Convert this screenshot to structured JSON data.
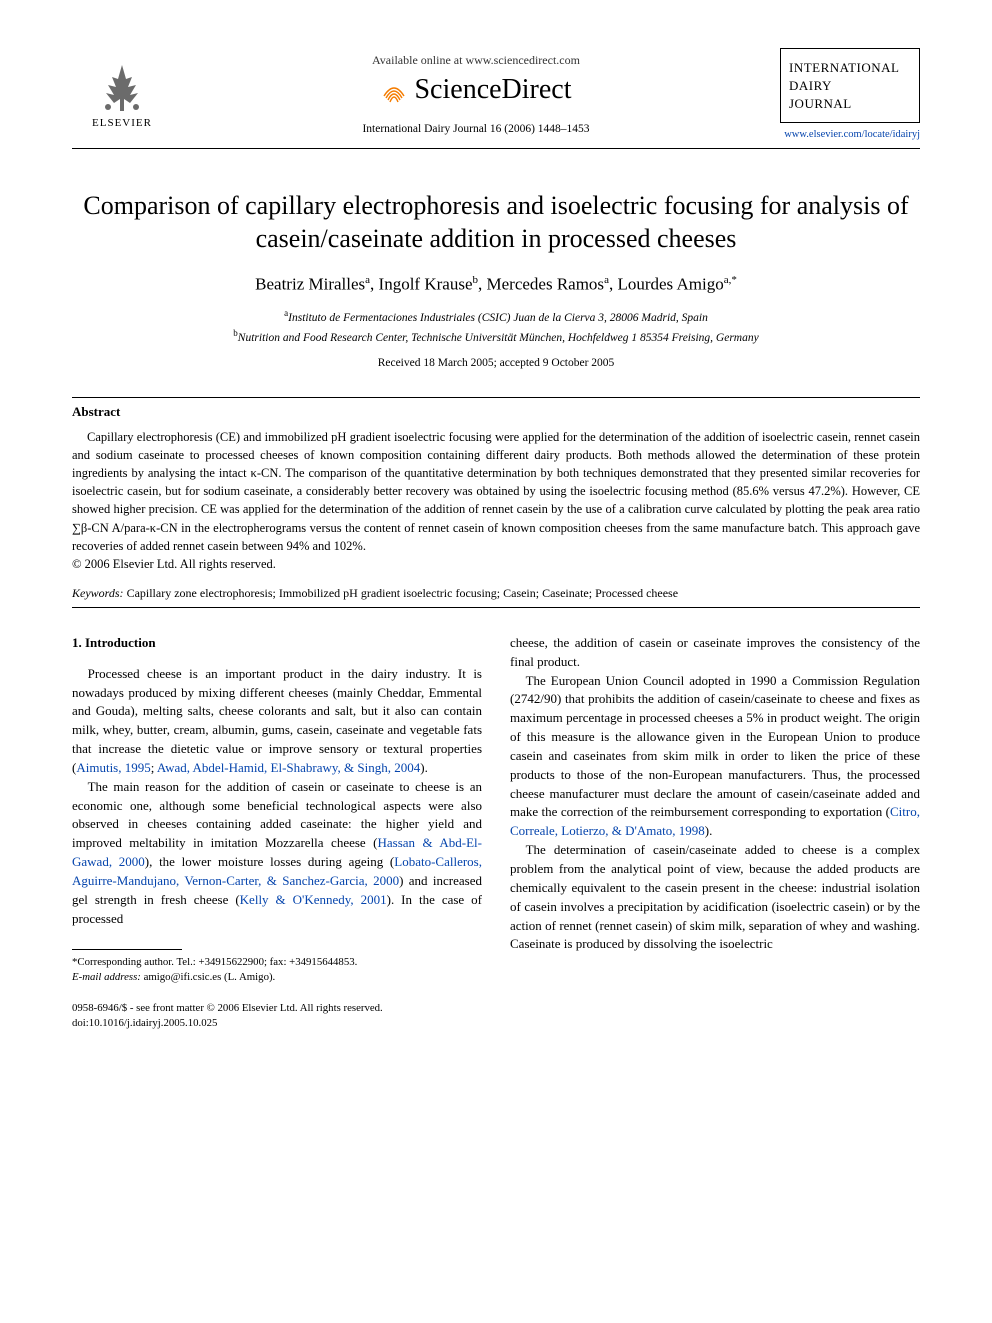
{
  "colors": {
    "link": "#0645ad",
    "text": "#000000",
    "background": "#ffffff",
    "sd_orange": "#f57c00",
    "elsevier_gold": "#b8860b"
  },
  "header": {
    "available_text": "Available online at www.sciencedirect.com",
    "sciencedirect": "ScienceDirect",
    "journal_ref": "International Dairy Journal 16 (2006) 1448–1453",
    "elsevier": "ELSEVIER",
    "journal_box_line1": "INTERNATIONAL",
    "journal_box_line2": "DAIRY",
    "journal_box_line3": "JOURNAL",
    "journal_link": "www.elsevier.com/locate/idairyj"
  },
  "title": "Comparison of capillary electrophoresis and isoelectric focusing for analysis of casein/caseinate addition in processed cheeses",
  "authors_html": "Beatriz Miralles<sup>a</sup>, Ingolf Krause<sup>b</sup>, Mercedes Ramos<sup>a</sup>, Lourdes Amigo<sup>a,*</sup>",
  "affiliations": {
    "a": "Instituto de Fermentaciones Industriales (CSIC) Juan de la Cierva 3, 28006 Madrid, Spain",
    "b": "Nutrition and Food Research Center, Technische Universität München, Hochfeldweg 1 85354 Freising, Germany"
  },
  "dates": "Received 18 March 2005; accepted 9 October 2005",
  "abstract": {
    "heading": "Abstract",
    "text": "Capillary electrophoresis (CE) and immobilized pH gradient isoelectric focusing were applied for the determination of the addition of isoelectric casein, rennet casein and sodium caseinate to processed cheeses of known composition containing different dairy products. Both methods allowed the determination of these protein ingredients by analysing the intact κ-CN. The comparison of the quantitative determination by both techniques demonstrated that they presented similar recoveries for isoelectric casein, but for sodium caseinate, a considerably better recovery was obtained by using the isoelectric focusing method (85.6% versus 47.2%). However, CE showed higher precision. CE was applied for the determination of the addition of rennet casein by the use of a calibration curve calculated by plotting the peak area ratio ∑β-CN A/para-κ-CN in the electropherograms versus the content of rennet casein of known composition cheeses from the same manufacture batch. This approach gave recoveries of added rennet casein between 94% and 102%.",
    "copyright": "© 2006 Elsevier Ltd. All rights reserved."
  },
  "keywords": {
    "label": "Keywords:",
    "text": "Capillary zone electrophoresis; Immobilized pH gradient isoelectric focusing; Casein; Caseinate; Processed cheese"
  },
  "intro": {
    "heading": "1. Introduction",
    "col1_p1": "Processed cheese is an important product in the dairy industry. It is nowadays produced by mixing different cheeses (mainly Cheddar, Emmental and Gouda), melting salts, cheese colorants and salt, but it also can contain milk, whey, butter, cream, albumin, gums, casein, caseinate and vegetable fats that increase the dietetic value or improve sensory or textural properties (",
    "col1_p1_cite1": "Aimutis, 1995",
    "col1_p1_mid": "; ",
    "col1_p1_cite2": "Awad, Abdel-Hamid, El-Shabrawy, & Singh, 2004",
    "col1_p1_end": ").",
    "col1_p2_a": "The main reason for the addition of casein or caseinate to cheese is an economic one, although some beneficial technological aspects were also observed in cheeses containing added caseinate: the higher yield and improved meltability in imitation Mozzarella cheese (",
    "col1_p2_cite1": "Hassan & Abd-El-Gawad, 2000",
    "col1_p2_b": "), the lower moisture losses during ageing (",
    "col1_p2_cite2": "Lobato-Calleros, Aguirre-Mandujano, Vernon-Carter, & Sanchez-Garcia, 2000",
    "col1_p2_c": ") and increased gel strength in fresh cheese (",
    "col1_p2_cite3": "Kelly & O'Kennedy, 2001",
    "col1_p2_d": "). In the case of processed",
    "col2_p0": "cheese, the addition of casein or caseinate improves the consistency of the final product.",
    "col2_p1_a": "The European Union Council adopted in 1990 a Commission Regulation (2742/90) that prohibits the addition of casein/caseinate to cheese and fixes as maximum percentage in processed cheeses a 5% in product weight. The origin of this measure is the allowance given in the European Union to produce casein and caseinates from skim milk in order to liken the price of these products to those of the non-European manufacturers. Thus, the processed cheese manufacturer must declare the amount of casein/caseinate added and make the correction of the reimbursement corresponding to exportation (",
    "col2_p1_cite": "Citro, Correale, Lotierzo, & D'Amato, 1998",
    "col2_p1_b": ").",
    "col2_p2": "The determination of casein/caseinate added to cheese is a complex problem from the analytical point of view, because the added products are chemically equivalent to the casein present in the cheese: industrial isolation of casein involves a precipitation by acidification (isoelectric casein) or by the action of rennet (rennet casein) of skim milk, separation of whey and washing. Caseinate is produced by dissolving the isoelectric"
  },
  "footnotes": {
    "corresponding": "*Corresponding author. Tel.: +34915622900; fax: +34915644853.",
    "email_label": "E-mail address:",
    "email": "amigo@ifi.csic.es (L. Amigo)."
  },
  "footer": {
    "issn": "0958-6946/$ - see front matter © 2006 Elsevier Ltd. All rights reserved.",
    "doi": "doi:10.1016/j.idairyj.2005.10.025"
  }
}
